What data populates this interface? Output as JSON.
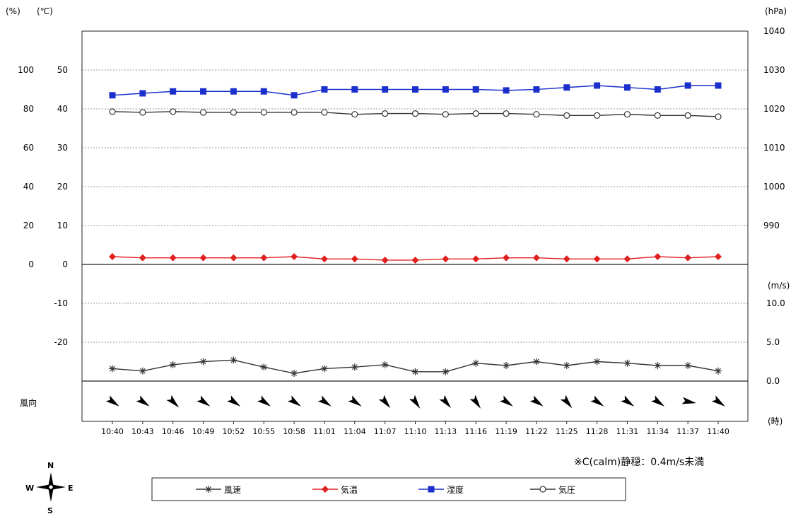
{
  "chart_data": {
    "type": "line",
    "categories": [
      "10:40",
      "10:43",
      "10:46",
      "10:49",
      "10:52",
      "10:55",
      "10:58",
      "11:01",
      "11:04",
      "11:07",
      "11:10",
      "11:13",
      "11:16",
      "11:19",
      "11:22",
      "11:25",
      "11:28",
      "11:31",
      "11:34",
      "11:37",
      "11:40"
    ],
    "axes": {
      "left_outer": {
        "unit": "(%)",
        "ticks": [
          "100",
          "80",
          "60",
          "40",
          "20",
          "0"
        ],
        "range": [
          0,
          120
        ]
      },
      "left_inner": {
        "unit": "(℃)",
        "ticks": [
          "50",
          "40",
          "30",
          "20",
          "10",
          "0",
          "-10",
          "-20"
        ],
        "range": [
          -30,
          60
        ]
      },
      "right_top": {
        "unit": "(hPa)",
        "ticks": [
          "1040",
          "1030",
          "1020",
          "1010",
          "1000",
          "990"
        ],
        "range": [
          980,
          1040
        ]
      },
      "right_bottom": {
        "unit": "(m/s)",
        "ticks": [
          "10.0",
          "5.0",
          "0.0"
        ],
        "range": [
          0,
          15
        ]
      },
      "x_unit": "(時)"
    },
    "series": [
      {
        "name": "風速",
        "axis": "right_bottom",
        "color": "#333333",
        "marker": "asterisk",
        "values": [
          1.6,
          1.3,
          2.1,
          2.5,
          2.7,
          1.8,
          1.0,
          1.6,
          1.8,
          2.1,
          1.2,
          1.2,
          2.3,
          2.0,
          2.5,
          2.0,
          2.5,
          2.3,
          2.0,
          2.0,
          1.3
        ]
      },
      {
        "name": "気温",
        "axis": "left_inner",
        "color": "#e02020",
        "marker": "diamond",
        "values": [
          2.0,
          1.7,
          1.7,
          1.7,
          1.7,
          1.7,
          2.0,
          1.4,
          1.4,
          1.1,
          1.1,
          1.4,
          1.4,
          1.7,
          1.7,
          1.4,
          1.4,
          1.4,
          2.0,
          1.7,
          2.0
        ]
      },
      {
        "name": "湿度",
        "axis": "left_outer",
        "color": "#1a2fcc",
        "marker": "square",
        "values": [
          87,
          88,
          89,
          89,
          89,
          89,
          87,
          90,
          90,
          90,
          90,
          90,
          90,
          89.5,
          90,
          91,
          92,
          91,
          90,
          92,
          92
        ]
      },
      {
        "name": "気圧",
        "axis": "right_top",
        "color": "#333333",
        "marker": "circle",
        "values": [
          1019.3,
          1019.1,
          1019.3,
          1019.1,
          1019.1,
          1019.1,
          1019.1,
          1019.1,
          1018.6,
          1018.8,
          1018.8,
          1018.6,
          1018.8,
          1018.8,
          1018.6,
          1018.3,
          1018.3,
          1018.6,
          1018.3,
          1018.3,
          1018.0
        ]
      }
    ],
    "wind_direction": {
      "label": "風向",
      "angles_deg": [
        125,
        125,
        135,
        125,
        125,
        125,
        125,
        125,
        125,
        140,
        145,
        140,
        145,
        125,
        125,
        140,
        125,
        125,
        125,
        100,
        125
      ]
    },
    "compass": {
      "N": "N",
      "S": "S",
      "E": "E",
      "W": "W"
    },
    "note": "※C(calm)静穏：0.4m/s未満",
    "legend_position": "bottom-center"
  }
}
